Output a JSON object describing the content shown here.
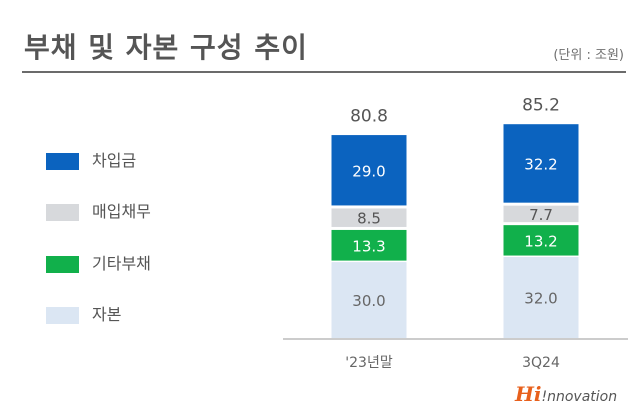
{
  "page": {
    "title": "부채 및 자본 구성 추이",
    "unit": "(단위 : 조원)"
  },
  "brand": {
    "hi": "Hi",
    "rest": "!nnovation"
  },
  "chart_data": {
    "type": "bar",
    "stacked": true,
    "categories": [
      "'23년말",
      "3Q24"
    ],
    "totals": [
      80.8,
      85.2
    ],
    "series": [
      {
        "name": "자본",
        "values": [
          30.0,
          32.0
        ],
        "color": "#dbe6f3",
        "label_color": "#666666"
      },
      {
        "name": "기타부채",
        "values": [
          13.3,
          13.2
        ],
        "color": "#11b04b",
        "label_color": "#ffffff"
      },
      {
        "name": "매입채무",
        "values": [
          8.5,
          7.7
        ],
        "color": "#d7d9dc",
        "label_color": "#555555"
      },
      {
        "name": "차입금",
        "values": [
          29.0,
          32.2
        ],
        "color": "#0b63bf",
        "label_color": "#ffffff"
      }
    ],
    "legend_order": [
      "차입금",
      "매입채무",
      "기타부채",
      "자본"
    ],
    "legend_position": "left",
    "grid": false
  }
}
